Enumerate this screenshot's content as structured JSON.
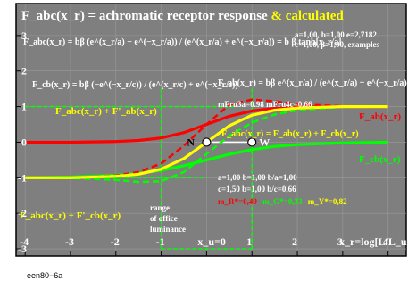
{
  "chart_data": {
    "type": "line",
    "title": "F_abc(x_r) = achromatic receptor response",
    "title_suffix": "& calculated",
    "xlabel": "x_r=log[L/L_u]",
    "xlim": [
      -4.2,
      4.4
    ],
    "ylim": [
      -3.2,
      3.9
    ],
    "x_ticks": [
      "-4",
      "-3",
      "-2",
      "-1",
      "x_u=0",
      "1",
      "2",
      "3",
      "4"
    ],
    "y_ticks": [
      "3",
      "2",
      "1",
      "0",
      "-1",
      "-2",
      "-3"
    ],
    "params_top": [
      "a=1,00, b=1,00 e=2,7182",
      "c=1,00, β=1,00, examples"
    ],
    "params_bottom": [
      "a=1,00 b=1,00 b/a=1,00",
      "c=1,50 b=1,00 b/c=0,66"
    ],
    "m_values": [
      "m_R*=0,49",
      "m_G*=0,33",
      "m_Y*=0,82"
    ],
    "mfru": "mFru3a=0.98  mFru4c=0.66",
    "range_note": [
      "range",
      "of office",
      "luminance"
    ],
    "point_labels": [
      "N",
      "W"
    ],
    "formula_labels": {
      "fabc_top": "F_abc(x_r) = bβ (e^(x_r/a) − e^(−x_r/a)) / (e^(x_r/a) + e^(−x_r/a)) = b β tanh[x_r/a]",
      "fcb": "F_cb(x_r) = bβ (−e^(−x_r/c)) / (e^(x_r/c) + e^(−x_r/c))",
      "fab": "F_ab(x_r) = bβ e^(x_r/a) / (e^(x_r/a) + e^(−x_r/a))",
      "sum_upper": "F_abc(x_r) + F'_ab(x_r)",
      "sum_lower": "F_abc(x_r) + F'_cb(x_r)",
      "fab_right": "F_ab(x_r)",
      "fcb_right": "F_cb(x_r)",
      "fabc_eq": "F_abc(x_r) = F_ab(x_r) + F_cb(x_r)"
    },
    "series": [
      {
        "name": "F_abc(x_r)",
        "color": "#ffff00",
        "x": [
          -4,
          -3,
          -2,
          -1.5,
          -1,
          -0.5,
          0,
          0.5,
          1,
          1.5,
          2,
          3,
          4
        ],
        "y": [
          -1.0,
          -1.0,
          -0.96,
          -0.9,
          -0.76,
          -0.46,
          0,
          0.46,
          0.76,
          0.9,
          0.96,
          1.0,
          1.0
        ]
      },
      {
        "name": "F_ab(x_r)",
        "color": "#ff0000",
        "x": [
          -4,
          -3,
          -2,
          -1.5,
          -1,
          -0.5,
          0,
          0.5,
          1,
          1.5,
          2,
          3,
          4
        ],
        "y": [
          0.0,
          0.0,
          0.02,
          0.05,
          0.12,
          0.27,
          0.5,
          0.73,
          0.88,
          0.95,
          0.98,
          1.0,
          1.0
        ]
      },
      {
        "name": "F_cb(x_r)",
        "color": "#00ff00",
        "x": [
          -4,
          -3,
          -2,
          -1.5,
          -1,
          -0.5,
          0,
          0.5,
          1,
          1.5,
          2,
          3,
          4
        ],
        "y": [
          -1.0,
          -0.98,
          -0.93,
          -0.88,
          -0.79,
          -0.66,
          -0.5,
          -0.34,
          -0.21,
          -0.12,
          -0.07,
          -0.02,
          0.0
        ]
      },
      {
        "name": "F_abc(x_r) + F'_ab(x_r)",
        "color": "#ff0000",
        "dashed": true,
        "x": [
          -4,
          -3,
          -2,
          -1.5,
          -1,
          -0.5,
          0,
          0.5,
          1,
          1.5,
          2,
          3,
          4
        ],
        "y": [
          -1.0,
          -1.0,
          -0.94,
          -0.84,
          -0.6,
          -0.1,
          0.5,
          1.05,
          1.2,
          1.15,
          1.07,
          1.01,
          1.0
        ]
      },
      {
        "name": "F_abc(x_r) + F'_cb(x_r)",
        "color": "#00ff00",
        "dashed": true,
        "x": [
          -4,
          -3,
          -2,
          -1.5,
          -1,
          -0.5,
          0,
          0.5,
          1,
          1.5,
          2,
          3,
          4
        ],
        "y": [
          -1.0,
          -1.01,
          -1.06,
          -1.12,
          -1.1,
          -0.84,
          -0.33,
          0.18,
          0.55,
          0.78,
          0.9,
          0.99,
          1.0
        ]
      }
    ],
    "reference_lines": {
      "y_pos": 1,
      "y_neg": -1,
      "x_range": [
        -1,
        1
      ]
    },
    "points": [
      {
        "label": "N",
        "x": 0,
        "y": 0
      },
      {
        "label": "W",
        "x": 1,
        "y": 0
      }
    ]
  },
  "footer": "een80−6a",
  "colors": {
    "background": "#7f7f7f",
    "title": "#ffffff",
    "accent": "#ffff00"
  }
}
